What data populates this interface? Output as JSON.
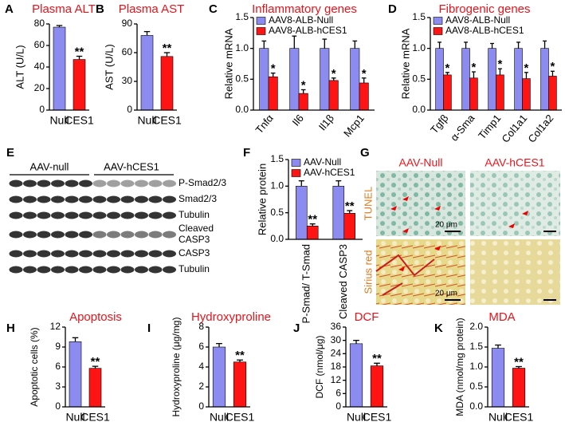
{
  "chart_data": [
    {
      "type": "bar",
      "panel": "A",
      "title": "Plasma ALT",
      "y_label": "ALT (U/L)",
      "categories": [
        "Null",
        "CES1"
      ],
      "values": [
        77,
        47
      ],
      "errors": [
        1.5,
        3
      ],
      "significance": [
        null,
        "**"
      ],
      "colors": [
        "#8c8cf0",
        "#ff1414"
      ],
      "ylim": [
        0,
        80
      ],
      "yticks": [
        0,
        20,
        40,
        60,
        80
      ]
    },
    {
      "type": "bar",
      "panel": "B",
      "title": "Plasma AST",
      "y_label": "AST (U/L)",
      "categories": [
        "Null",
        "CES1"
      ],
      "values": [
        78,
        56
      ],
      "errors": [
        4,
        4
      ],
      "significance": [
        null,
        "**"
      ],
      "colors": [
        "#8c8cf0",
        "#ff1414"
      ],
      "ylim": [
        0,
        90
      ],
      "yticks": [
        0,
        30,
        60,
        90
      ]
    },
    {
      "type": "grouped_bar",
      "panel": "C",
      "title": "Inflammatory genes",
      "y_label": "Relative mRNA",
      "categories": [
        "Tnfα",
        "Il6",
        "Il1β",
        "Mcp1"
      ],
      "series": [
        {
          "name": "AAV8-ALB-Null",
          "color": "#8c8cf0",
          "values": [
            1,
            1,
            1,
            1
          ],
          "errors": [
            0.12,
            0.2,
            0.15,
            0.12
          ]
        },
        {
          "name": "AAV8-ALB-hCES1",
          "color": "#ff1414",
          "values": [
            0.54,
            0.27,
            0.48,
            0.44
          ],
          "errors": [
            0.06,
            0.06,
            0.04,
            0.08
          ],
          "significance": [
            "*",
            "*",
            "*",
            "*"
          ]
        }
      ],
      "ylim": [
        0,
        1.5
      ],
      "yticks": [
        {
          "value": 0,
          "label": "0.0"
        },
        0.5,
        {
          "value": 1,
          "label": "1.0"
        },
        1.5
      ]
    },
    {
      "type": "grouped_bar",
      "panel": "D",
      "title": "Fibrogenic genes",
      "y_label": "Relative mRNA",
      "categories": [
        "Tgfβ",
        "α-Sma",
        "Timp1",
        "Col1a1",
        "Col1a2"
      ],
      "series": [
        {
          "name": "AAV8-ALB-Null",
          "color": "#8c8cf0",
          "values": [
            1,
            1,
            1,
            1,
            1
          ],
          "errors": [
            0.1,
            0.1,
            0.08,
            0.1,
            0.12
          ]
        },
        {
          "name": "AAV8-ALB-hCES1",
          "color": "#ff1414",
          "values": [
            0.57,
            0.52,
            0.57,
            0.51,
            0.55
          ],
          "errors": [
            0.04,
            0.1,
            0.1,
            0.1,
            0.08
          ],
          "significance": [
            "*",
            "*",
            "*",
            "*",
            "*"
          ]
        }
      ],
      "ylim": [
        0,
        1.5
      ],
      "yticks": [
        {
          "value": 0,
          "label": "0.0"
        },
        0.5,
        {
          "value": 1,
          "label": "1.0"
        },
        1.5
      ]
    },
    {
      "type": "grouped_bar",
      "panel": "F",
      "y_label": "Relative protein",
      "categories": [
        "P-Smad/ T-Smad",
        "Cleaved CASP3"
      ],
      "series": [
        {
          "name": "AAV-Null",
          "color": "#8c8cf0",
          "values": [
            1,
            1
          ],
          "errors": [
            0.1,
            0.1
          ]
        },
        {
          "name": "AAV-hCES1",
          "color": "#ff1414",
          "values": [
            0.25,
            0.49
          ],
          "errors": [
            0.04,
            0.05
          ],
          "significance": [
            "**",
            "**"
          ]
        }
      ],
      "ylim": [
        0,
        1.5
      ],
      "yticks": [
        {
          "value": 0,
          "label": "0.0"
        },
        0.5,
        {
          "value": 1,
          "label": "1.0"
        },
        1.5
      ]
    },
    {
      "type": "bar",
      "panel": "H",
      "title": "Apoptosis",
      "y_label": "Apoptotic cells (%)",
      "categories": [
        "Null",
        "CES1"
      ],
      "values": [
        9.8,
        5.8
      ],
      "errors": [
        0.6,
        0.3
      ],
      "significance": [
        null,
        "**"
      ],
      "colors": [
        "#8c8cf0",
        "#ff1414"
      ],
      "ylim": [
        0,
        12
      ],
      "yticks": [
        0,
        3,
        6,
        9,
        12
      ]
    },
    {
      "type": "bar",
      "panel": "I",
      "title": "Hydroxyproline",
      "y_label": "Hydroxyproline (μg/mg)",
      "categories": [
        "Null",
        "CES1"
      ],
      "values": [
        6.0,
        4.5
      ],
      "errors": [
        0.35,
        0.2
      ],
      "significance": [
        null,
        "**"
      ],
      "colors": [
        "#8c8cf0",
        "#ff1414"
      ],
      "ylim": [
        0,
        8
      ],
      "yticks": [
        0,
        2,
        4,
        6,
        8
      ]
    },
    {
      "type": "bar",
      "panel": "J",
      "title": "DCF",
      "y_label": "DCF (nmol/μg)",
      "categories": [
        "Null",
        "CES1"
      ],
      "values": [
        28.5,
        18.5
      ],
      "errors": [
        1.5,
        1.2
      ],
      "significance": [
        null,
        "**"
      ],
      "colors": [
        "#8c8cf0",
        "#ff1414"
      ],
      "ylim": [
        0,
        36
      ],
      "yticks": [
        0,
        6,
        12,
        18,
        24,
        30,
        36
      ]
    },
    {
      "type": "bar",
      "panel": "K",
      "title": "MDA",
      "y_label": "MDA (nmol/mg protein)",
      "categories": [
        "Null",
        "CES1"
      ],
      "values": [
        1.47,
        0.97
      ],
      "errors": [
        0.08,
        0.04
      ],
      "significance": [
        null,
        "**"
      ],
      "colors": [
        "#8c8cf0",
        "#ff1414"
      ],
      "ylim": [
        0,
        2
      ],
      "yticks": [
        {
          "value": 0,
          "label": "0.0"
        },
        0.5,
        {
          "value": 1,
          "label": "1.0"
        },
        1.5,
        {
          "value": 2,
          "label": "2.0"
        }
      ]
    }
  ],
  "blot": {
    "panel": "E",
    "groups": [
      "AAV-null",
      "AAV-hCES1"
    ],
    "bands": [
      [
        "P-Smad2/3"
      ],
      [
        "Smad2/3"
      ],
      [
        "Tubulin"
      ],
      [
        "Cleaved",
        "CASP3"
      ],
      [
        "CASP3"
      ],
      [
        "Tubulin"
      ]
    ]
  },
  "micrographs": {
    "panel": "G",
    "columns": [
      "AAV-Null",
      "AAV-hCES1"
    ],
    "rows": [
      "TUNEL",
      "Sirius red"
    ],
    "scale_bar": "20 μm"
  }
}
